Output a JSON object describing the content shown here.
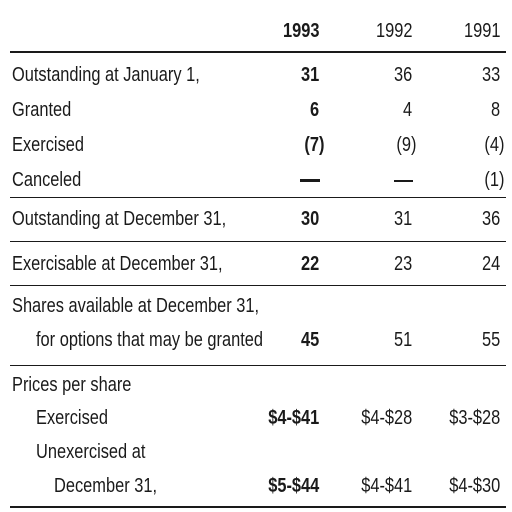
{
  "headers": {
    "y1993": "1993",
    "y1992": "1992",
    "y1991": "1991"
  },
  "rows": {
    "outstanding_jan": {
      "label": "Outstanding at January 1,",
      "v1993": "31",
      "v1992": "36",
      "v1991": "33"
    },
    "granted": {
      "label": "Granted",
      "v1993": "6",
      "v1992": "4",
      "v1991": "8"
    },
    "exercised": {
      "label": "Exercised",
      "v1993": "(7)",
      "v1992": "(9)",
      "v1991": "(4)"
    },
    "canceled": {
      "label": "Canceled",
      "v1993": "—",
      "v1992": "—",
      "v1991": "(1)"
    },
    "outstanding_dec": {
      "label": "Outstanding at December 31,",
      "v1993": "30",
      "v1992": "31",
      "v1991": "36"
    },
    "exercisable_dec": {
      "label": "Exercisable at December 31,",
      "v1993": "22",
      "v1992": "23",
      "v1991": "24"
    },
    "shares_available": {
      "label_line1": "Shares available at December 31,",
      "label_line2": "for options that may be granted",
      "v1993": "45",
      "v1992": "51",
      "v1991": "55"
    },
    "prices_heading": {
      "label": "Prices per share"
    },
    "prices_exercised": {
      "label": "Exercised",
      "v1993": "$4-$41",
      "v1992": "$4-$28",
      "v1991": "$3-$28"
    },
    "prices_unexercised": {
      "label_line1": "Unexercised at",
      "label_line2": "December 31,",
      "v1993": "$5-$44",
      "v1992": "$4-$41",
      "v1991": "$4-$30"
    }
  }
}
